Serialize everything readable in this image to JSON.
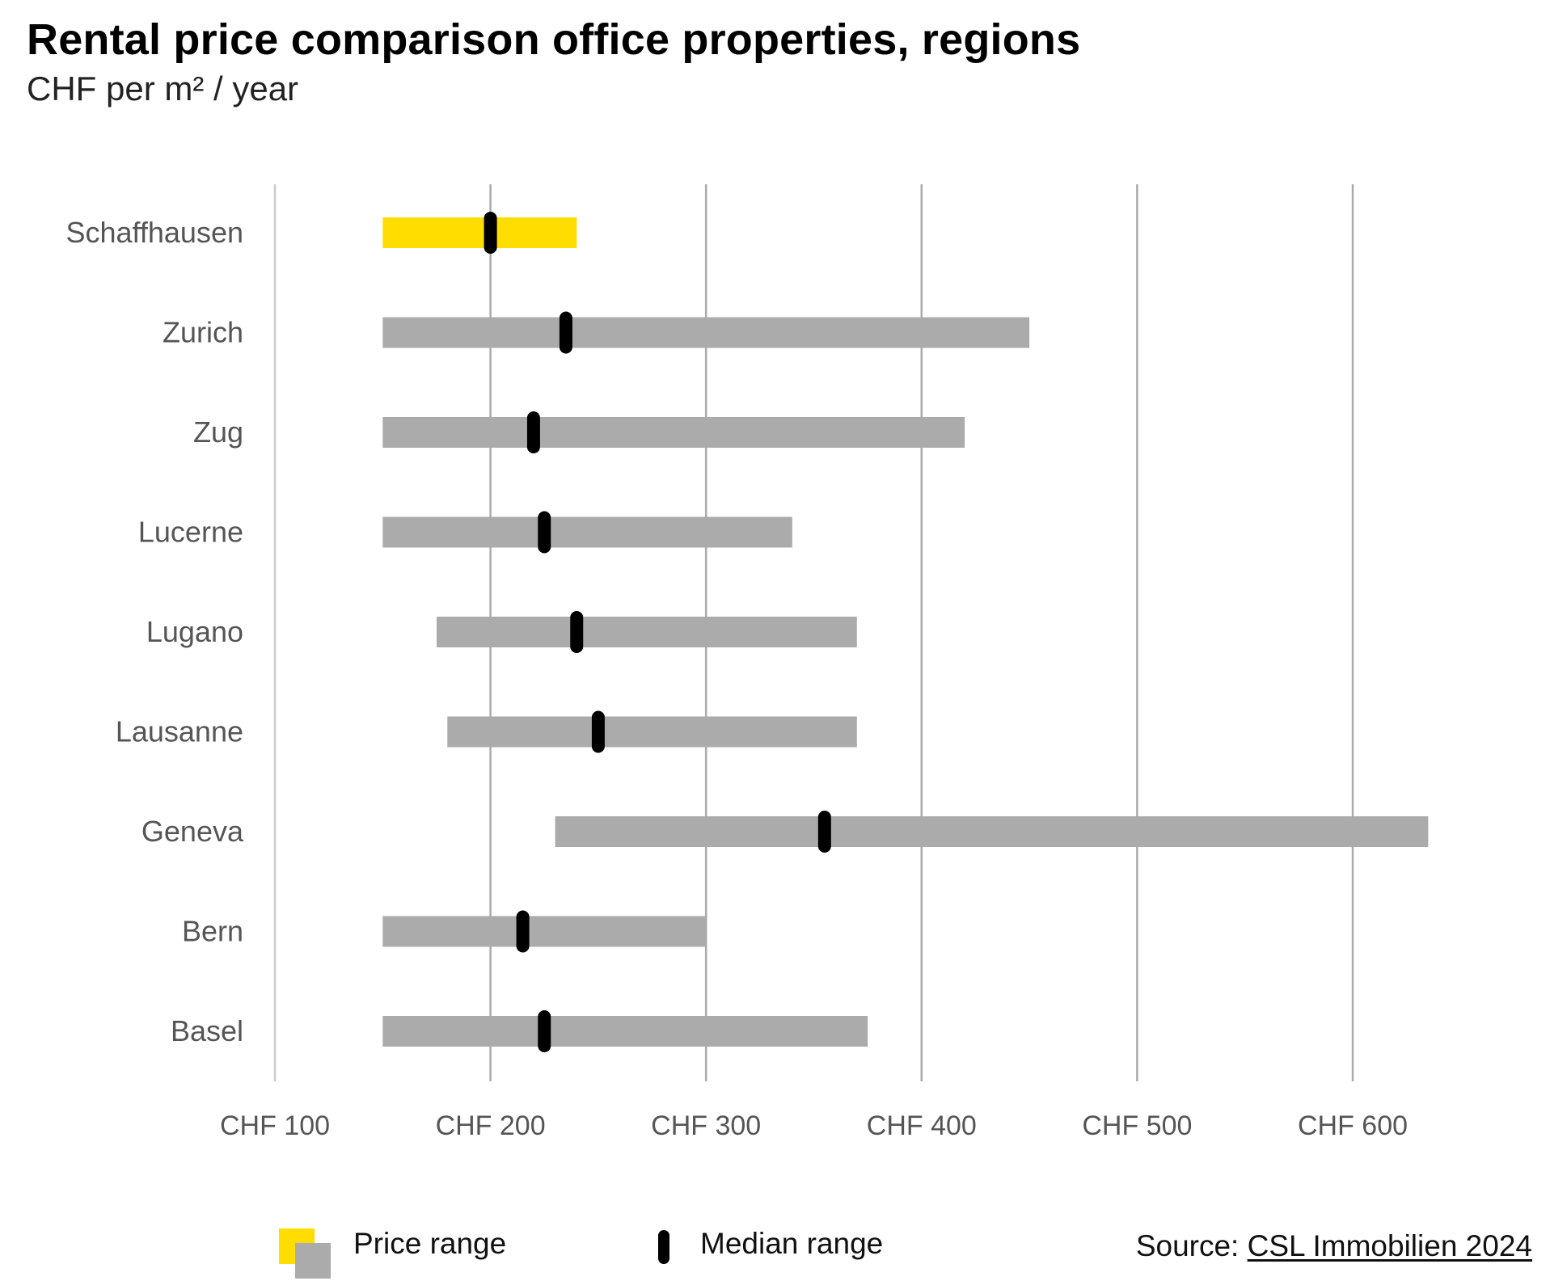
{
  "title": "Rental price comparison office properties, regions",
  "subtitle": "CHF per m² / year",
  "chart_data": {
    "type": "range",
    "categories": [
      "Schaffhausen",
      "Zurich",
      "Zug",
      "Lucerne",
      "Lugano",
      "Lausanne",
      "Geneva",
      "Bern",
      "Basel"
    ],
    "series": [
      {
        "name": "Price range",
        "ranges": [
          [
            150,
            240
          ],
          [
            150,
            450
          ],
          [
            150,
            420
          ],
          [
            150,
            340
          ],
          [
            175,
            370
          ],
          [
            180,
            370
          ],
          [
            230,
            635
          ],
          [
            150,
            300
          ],
          [
            150,
            375
          ]
        ]
      },
      {
        "name": "Median range",
        "values": [
          200,
          235,
          220,
          225,
          240,
          250,
          355,
          215,
          225
        ]
      }
    ],
    "highlight_category": "Schaffhausen",
    "xlim": [
      100,
      635
    ],
    "xticks": [
      100,
      200,
      300,
      400,
      500,
      600
    ],
    "xtick_labels": [
      "CHF 100",
      "CHF 200",
      "CHF 300",
      "CHF 400",
      "CHF 500",
      "CHF 600"
    ],
    "grid": true,
    "legend_position": "bottom-left"
  },
  "colors": {
    "highlight": "#FFDD00",
    "range": "#ABABAB",
    "median": "#000000",
    "grid": "#AAAAAA"
  },
  "legend": {
    "price_label": "Price range",
    "median_label": "Median range"
  },
  "source": {
    "prefix": "Source:",
    "link_text": "CSL Immobilien 2024"
  }
}
